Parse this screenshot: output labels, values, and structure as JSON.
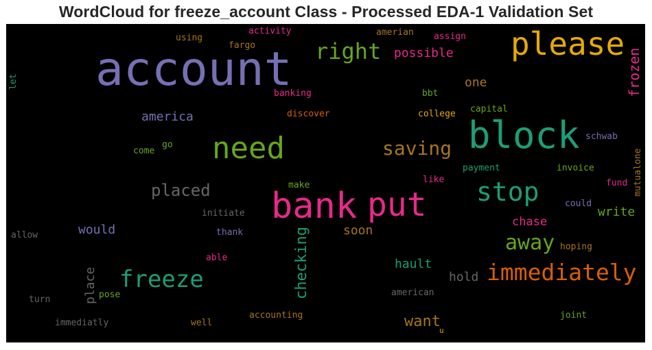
{
  "title": "WordCloud for freeze_account Class - Processed EDA-1 Validation Set",
  "colors": {
    "purple": "#7570b3",
    "green": "#66a61e",
    "teal": "#1b9e77",
    "orange": "#d95f02",
    "pink": "#e7298a",
    "gold": "#e6ab02",
    "brown": "#a6761d",
    "gray": "#666666"
  },
  "words": [
    {
      "text": "account",
      "color": "purple"
    },
    {
      "text": "please",
      "color": "gold"
    },
    {
      "text": "block",
      "color": "teal"
    },
    {
      "text": "bank",
      "color": "pink"
    },
    {
      "text": "put",
      "color": "pink"
    },
    {
      "text": "need",
      "color": "green"
    },
    {
      "text": "stop",
      "color": "teal"
    },
    {
      "text": "right",
      "color": "green"
    },
    {
      "text": "saving",
      "color": "brown"
    },
    {
      "text": "immediately",
      "color": "orange"
    },
    {
      "text": "freeze",
      "color": "teal"
    },
    {
      "text": "away",
      "color": "green"
    },
    {
      "text": "placed",
      "color": "gray"
    },
    {
      "text": "checking",
      "color": "teal"
    },
    {
      "text": "frozen",
      "color": "pink"
    },
    {
      "text": "want",
      "color": "brown"
    },
    {
      "text": "america",
      "color": "purple"
    },
    {
      "text": "would",
      "color": "purple"
    },
    {
      "text": "place",
      "color": "gray"
    },
    {
      "text": "possible",
      "color": "pink"
    },
    {
      "text": "one",
      "color": "brown"
    },
    {
      "text": "soon",
      "color": "brown"
    },
    {
      "text": "write",
      "color": "green"
    },
    {
      "text": "chase",
      "color": "pink"
    },
    {
      "text": "hault",
      "color": "teal"
    },
    {
      "text": "hold",
      "color": "gray"
    },
    {
      "text": "activity",
      "color": "pink"
    },
    {
      "text": "using",
      "color": "brown"
    },
    {
      "text": "fargo",
      "color": "brown"
    },
    {
      "text": "amerian",
      "color": "brown"
    },
    {
      "text": "assign",
      "color": "pink"
    },
    {
      "text": "let",
      "color": "teal"
    },
    {
      "text": "banking",
      "color": "pink"
    },
    {
      "text": "bbt",
      "color": "green"
    },
    {
      "text": "discover",
      "color": "orange"
    },
    {
      "text": "college",
      "color": "gold"
    },
    {
      "text": "capital",
      "color": "green"
    },
    {
      "text": "schwab",
      "color": "purple"
    },
    {
      "text": "come",
      "color": "green"
    },
    {
      "text": "go",
      "color": "green"
    },
    {
      "text": "payment",
      "color": "teal"
    },
    {
      "text": "invoice",
      "color": "green"
    },
    {
      "text": "mutualone",
      "color": "brown"
    },
    {
      "text": "make",
      "color": "green"
    },
    {
      "text": "like",
      "color": "pink"
    },
    {
      "text": "fund",
      "color": "pink"
    },
    {
      "text": "could",
      "color": "purple"
    },
    {
      "text": "initiate",
      "color": "gray"
    },
    {
      "text": "thank",
      "color": "purple"
    },
    {
      "text": "allow",
      "color": "gray"
    },
    {
      "text": "able",
      "color": "pink"
    },
    {
      "text": "hoping",
      "color": "brown"
    },
    {
      "text": "pose",
      "color": "green"
    },
    {
      "text": "american",
      "color": "gray"
    },
    {
      "text": "turn",
      "color": "gray"
    },
    {
      "text": "accounting",
      "color": "brown"
    },
    {
      "text": "immediatly",
      "color": "gray"
    },
    {
      "text": "well",
      "color": "brown"
    },
    {
      "text": "joint",
      "color": "green"
    },
    {
      "text": "u",
      "color": "gold"
    }
  ]
}
